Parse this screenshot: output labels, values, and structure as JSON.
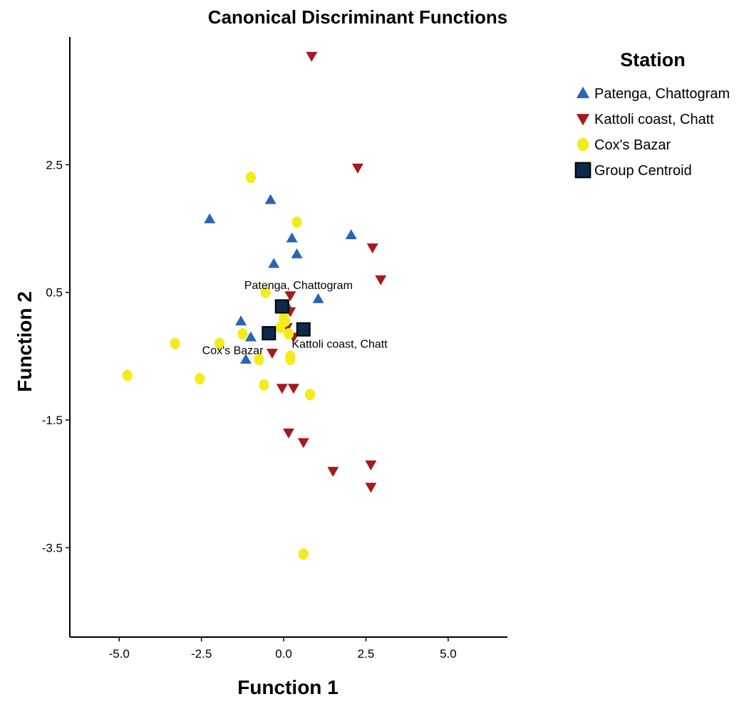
{
  "chart_data": {
    "type": "scatter",
    "title": "Canonical Discriminant Functions",
    "xlabel": "Function 1",
    "ylabel": "Function 2",
    "xlim": [
      -6.5,
      6.8
    ],
    "ylim": [
      -4.9,
      4.5
    ],
    "x_ticks": [
      -5.0,
      -2.5,
      0.0,
      2.5,
      5.0
    ],
    "x_tick_labels": [
      "-5.0",
      "-2.5",
      "0.0",
      "2.5",
      "5.0"
    ],
    "y_ticks": [
      2.5,
      0.5,
      -1.5,
      -3.5
    ],
    "y_tick_labels": [
      "2.5",
      "0.5",
      "-1.5",
      "-3.5"
    ],
    "grid": false,
    "legend": {
      "title": "Station",
      "placement": "top-right",
      "entries": [
        {
          "label": "Patenga, Chattogram",
          "marker": "triangle-up",
          "color": "#2a64b4"
        },
        {
          "label": "Kattoli coast, Chatt",
          "marker": "triangle-down",
          "color": "#a61a1a"
        },
        {
          "label": "Cox's Bazar",
          "marker": "circle",
          "color": "#f2ec1a"
        },
        {
          "label": "Group Centroid",
          "marker": "square",
          "color": "#0e2a4a"
        }
      ]
    },
    "series": [
      {
        "name": "Patenga, Chattogram",
        "marker": "triangle-up",
        "color": "#2a64b4",
        "points": [
          [
            -2.25,
            1.65
          ],
          [
            -0.4,
            1.95
          ],
          [
            0.25,
            1.35
          ],
          [
            0.4,
            1.1
          ],
          [
            -0.3,
            0.95
          ],
          [
            2.05,
            1.4
          ],
          [
            1.05,
            0.4
          ],
          [
            -1.3,
            0.05
          ],
          [
            -1.0,
            -0.2
          ],
          [
            -1.15,
            -0.55
          ],
          [
            0.1,
            0.3
          ]
        ]
      },
      {
        "name": "Kattoli coast, Chatt",
        "marker": "triangle-down",
        "color": "#a61a1a",
        "points": [
          [
            0.85,
            4.2
          ],
          [
            2.25,
            2.45
          ],
          [
            2.7,
            1.2
          ],
          [
            2.95,
            0.7
          ],
          [
            0.2,
            0.45
          ],
          [
            0.2,
            0.2
          ],
          [
            0.1,
            -0.05
          ],
          [
            0.3,
            -0.2
          ],
          [
            -0.35,
            -0.45
          ],
          [
            -0.05,
            -1.0
          ],
          [
            0.3,
            -1.0
          ],
          [
            0.15,
            -1.7
          ],
          [
            0.6,
            -1.85
          ],
          [
            2.65,
            -2.2
          ],
          [
            1.5,
            -2.3
          ],
          [
            2.65,
            -2.55
          ]
        ]
      },
      {
        "name": "Cox's Bazar",
        "marker": "circle",
        "color": "#f2ec1a",
        "points": [
          [
            -1.0,
            2.3
          ],
          [
            0.4,
            1.6
          ],
          [
            -0.55,
            0.5
          ],
          [
            0.0,
            0.1
          ],
          [
            0.05,
            0.05
          ],
          [
            -0.1,
            -0.05
          ],
          [
            0.15,
            -0.15
          ],
          [
            -1.25,
            -0.15
          ],
          [
            -1.95,
            -0.3
          ],
          [
            -3.3,
            -0.3
          ],
          [
            0.2,
            -0.5
          ],
          [
            0.2,
            -0.55
          ],
          [
            -0.75,
            -0.55
          ],
          [
            -4.75,
            -0.8
          ],
          [
            -2.55,
            -0.85
          ],
          [
            -0.6,
            -0.95
          ],
          [
            0.8,
            -1.1
          ],
          [
            0.6,
            -3.6
          ]
        ]
      },
      {
        "name": "Group Centroid",
        "marker": "square",
        "color": "#0e2a4a",
        "points": [
          [
            -0.05,
            0.28
          ],
          [
            0.6,
            -0.08
          ],
          [
            -0.45,
            -0.14
          ]
        ]
      }
    ],
    "centroid_labels": [
      {
        "text": "Patenga, Chattogram",
        "x": 0.45,
        "y": 0.55
      },
      {
        "text": "Kattoli coast, Chatt",
        "x": 1.7,
        "y": -0.37
      },
      {
        "text": "Cox's Bazar",
        "x": -1.55,
        "y": -0.47
      }
    ]
  }
}
